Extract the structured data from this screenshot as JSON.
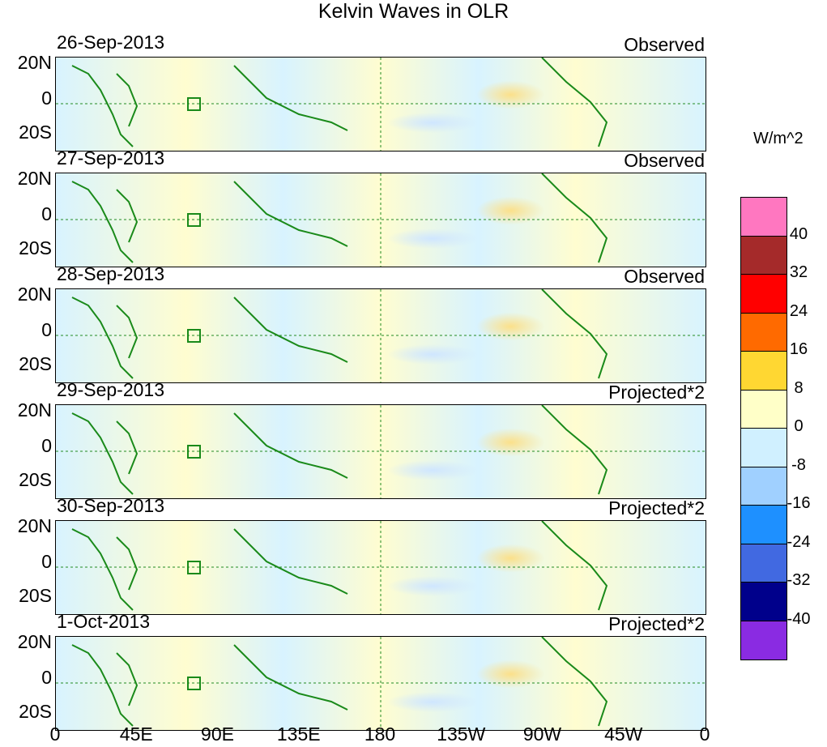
{
  "title": "Kelvin Waves in OLR",
  "panels": [
    {
      "date": "26-Sep-2013",
      "mode": "Observed"
    },
    {
      "date": "27-Sep-2013",
      "mode": "Observed"
    },
    {
      "date": "28-Sep-2013",
      "mode": "Observed"
    },
    {
      "date": "29-Sep-2013",
      "mode": "Projected*2"
    },
    {
      "date": "30-Sep-2013",
      "mode": "Projected*2"
    },
    {
      "date": "1-Oct-2013",
      "mode": "Projected*2"
    }
  ],
  "lat_labels": {
    "north": "20N",
    "equator": "0",
    "south": "20S"
  },
  "lon_labels": [
    "0",
    "45E",
    "90E",
    "135E",
    "180",
    "135W",
    "90W",
    "45W",
    "0"
  ],
  "colorbar": {
    "unit": "W/m^2",
    "labels": [
      "40",
      "32",
      "24",
      "16",
      "8",
      "0",
      "-8",
      "-16",
      "-24",
      "-32",
      "-40"
    ],
    "colors": [
      "#ff77c0",
      "#a52a2a",
      "#ff0000",
      "#ff6a00",
      "#ffd732",
      "#ffffc8",
      "#d0f0ff",
      "#a0d0ff",
      "#1e90ff",
      "#4169e1",
      "#00008b",
      "#8a2be2"
    ]
  }
}
